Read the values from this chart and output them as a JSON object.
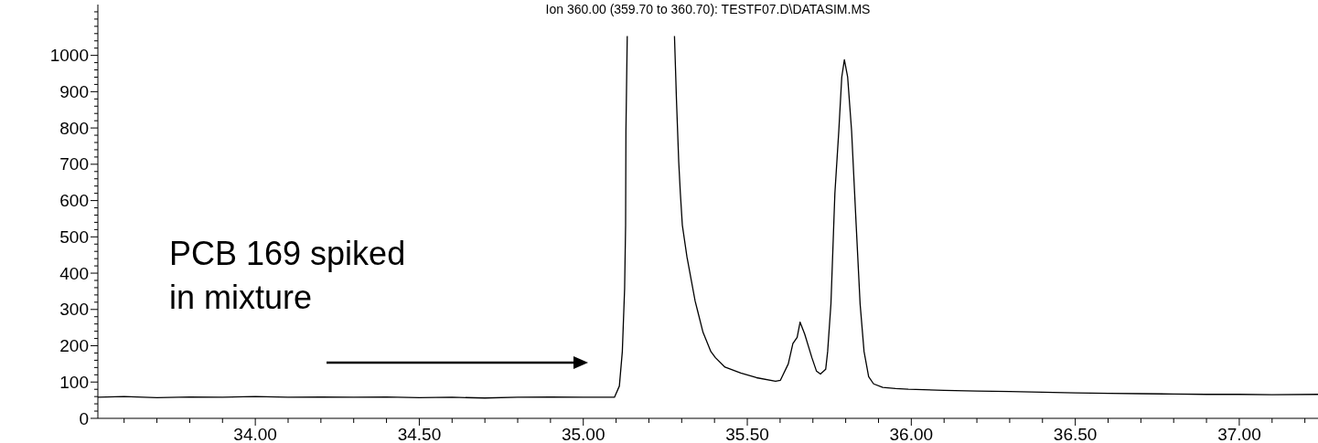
{
  "chart_data": {
    "type": "line",
    "title": "Ion 360.00 (359.70 to 360.70): TESTF07.D\\DATASIM.MS",
    "annotations": [
      "PCB 169 spiked in mixture"
    ],
    "xlim": [
      33.52,
      37.24
    ],
    "xticks": [
      {
        "value": 33.6,
        "label": null
      },
      {
        "value": 33.7,
        "label": null
      },
      {
        "value": 33.8,
        "label": null
      },
      {
        "value": 33.9,
        "label": null
      },
      {
        "value": 34,
        "label": "34.00"
      },
      {
        "value": 34.1,
        "label": null
      },
      {
        "value": 34.2,
        "label": null
      },
      {
        "value": 34.3,
        "label": null
      },
      {
        "value": 34.4,
        "label": null
      },
      {
        "value": 34.5,
        "label": "34.50"
      },
      {
        "value": 34.6,
        "label": null
      },
      {
        "value": 34.7,
        "label": null
      },
      {
        "value": 34.8,
        "label": null
      },
      {
        "value": 34.9,
        "label": null
      },
      {
        "value": 35,
        "label": "35.00"
      },
      {
        "value": 35.1,
        "label": null
      },
      {
        "value": 35.2,
        "label": null
      },
      {
        "value": 35.3,
        "label": null
      },
      {
        "value": 35.4,
        "label": null
      },
      {
        "value": 35.5,
        "label": "35.50"
      },
      {
        "value": 35.6,
        "label": null
      },
      {
        "value": 35.7,
        "label": null
      },
      {
        "value": 35.8,
        "label": null
      },
      {
        "value": 35.9,
        "label": null
      },
      {
        "value": 36,
        "label": "36.00"
      },
      {
        "value": 36.1,
        "label": null
      },
      {
        "value": 36.2,
        "label": null
      },
      {
        "value": 36.3,
        "label": null
      },
      {
        "value": 36.4,
        "label": null
      },
      {
        "value": 36.5,
        "label": "36.50"
      },
      {
        "value": 36.6,
        "label": null
      },
      {
        "value": 36.7,
        "label": null
      },
      {
        "value": 36.8,
        "label": null
      },
      {
        "value": 36.9,
        "label": null
      },
      {
        "value": 37,
        "label": "37.00"
      },
      {
        "value": 37.1,
        "label": null
      },
      {
        "value": 37.2,
        "label": null
      }
    ],
    "ylim": [
      0,
      1140
    ],
    "yticks": [
      0,
      {
        "value": 20,
        "label": null
      },
      {
        "value": 40,
        "label": null
      },
      {
        "value": 60,
        "label": null
      },
      {
        "value": 80,
        "label": null
      },
      100,
      {
        "value": 120,
        "label": null
      },
      {
        "value": 140,
        "label": null
      },
      {
        "value": 160,
        "label": null
      },
      {
        "value": 180,
        "label": null
      },
      200,
      {
        "value": 220,
        "label": null
      },
      {
        "value": 240,
        "label": null
      },
      {
        "value": 260,
        "label": null
      },
      {
        "value": 280,
        "label": null
      },
      300,
      {
        "value": 320,
        "label": null
      },
      {
        "value": 340,
        "label": null
      },
      {
        "value": 360,
        "label": null
      },
      {
        "value": 380,
        "label": null
      },
      400,
      {
        "value": 420,
        "label": null
      },
      {
        "value": 440,
        "label": null
      },
      {
        "value": 460,
        "label": null
      },
      {
        "value": 480,
        "label": null
      },
      500,
      {
        "value": 520,
        "label": null
      },
      {
        "value": 540,
        "label": null
      },
      {
        "value": 560,
        "label": null
      },
      {
        "value": 580,
        "label": null
      },
      600,
      {
        "value": 620,
        "label": null
      },
      {
        "value": 640,
        "label": null
      },
      {
        "value": 660,
        "label": null
      },
      {
        "value": 680,
        "label": null
      },
      700,
      {
        "value": 720,
        "label": null
      },
      {
        "value": 740,
        "label": null
      },
      {
        "value": 760,
        "label": null
      },
      {
        "value": 780,
        "label": null
      },
      800,
      {
        "value": 820,
        "label": null
      },
      {
        "value": 840,
        "label": null
      },
      {
        "value": 860,
        "label": null
      },
      {
        "value": 880,
        "label": null
      },
      900,
      {
        "value": 920,
        "label": null
      },
      {
        "value": 940,
        "label": null
      },
      {
        "value": 960,
        "label": null
      },
      {
        "value": 980,
        "label": null
      },
      1000,
      {
        "value": 1020,
        "label": null
      },
      {
        "value": 1040,
        "label": null
      },
      {
        "value": 1060,
        "label": null
      },
      {
        "value": 1080,
        "label": null
      },
      {
        "value": 1100,
        "label": null
      },
      {
        "value": 1120,
        "label": null
      }
    ],
    "grid": false,
    "marker": "none",
    "line_style": "solid",
    "series": [
      {
        "color": "#000000",
        "x": [
          33.52,
          33.6,
          33.7,
          33.8,
          33.9,
          34.0,
          34.1,
          34.2,
          34.3,
          34.4,
          34.5,
          34.6,
          34.7,
          34.8,
          34.9,
          35.0,
          35.095,
          35.11,
          35.119,
          35.126,
          35.129,
          35.13,
          35.134,
          35.137,
          35.2,
          35.263,
          35.278,
          35.281,
          35.284,
          35.291,
          35.296,
          35.302,
          35.316,
          35.341,
          35.365,
          35.389,
          35.403,
          35.432,
          35.48,
          35.528,
          35.586,
          35.601,
          35.625,
          35.639,
          35.652,
          35.661,
          35.675,
          35.697,
          35.711,
          35.723,
          35.739,
          35.745,
          35.755,
          35.767,
          35.779,
          35.788,
          35.796,
          35.806,
          35.818,
          35.832,
          35.844,
          35.856,
          35.87,
          35.885,
          35.913,
          35.952,
          35.991,
          36.1,
          36.2,
          36.3,
          36.4,
          36.5,
          36.6,
          36.7,
          36.8,
          36.9,
          37.0,
          37.1,
          37.24
        ],
        "values": [
          58,
          60,
          57,
          59,
          58,
          60,
          58,
          59,
          58,
          59,
          57,
          58,
          56,
          58,
          59,
          58,
          58,
          89,
          184,
          358,
          532,
          792,
          1053,
          null,
          null,
          null,
          1053,
          967,
          879,
          706,
          619,
          532,
          445,
          323,
          237,
          184,
          167,
          141,
          125,
          112,
          102,
          105,
          150,
          206,
          223,
          265,
          232,
          167,
          130,
          122,
          135,
          184,
          315,
          619,
          792,
          940,
          988,
          940,
          792,
          532,
          315,
          184,
          115,
          95,
          85,
          82,
          80,
          77,
          75,
          74,
          72,
          70,
          69,
          68,
          67,
          66,
          66,
          65,
          66
        ]
      }
    ]
  }
}
